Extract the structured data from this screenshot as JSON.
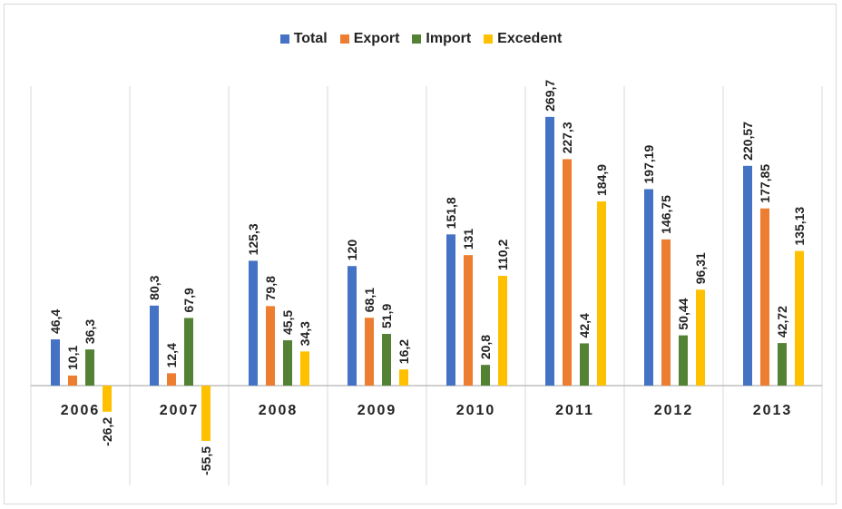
{
  "chart_data": {
    "type": "bar",
    "categories": [
      "2006",
      "2007",
      "2008",
      "2009",
      "2010",
      "2011",
      "2012",
      "2013"
    ],
    "series": [
      {
        "name": "Total",
        "color": "#4472c4",
        "values": [
          46.4,
          80.3,
          125.3,
          120,
          151.8,
          269.7,
          197.19,
          220.57
        ],
        "labels": [
          "46,4",
          "80,3",
          "125,3",
          "120",
          "151,8",
          "269,7",
          "197,19",
          "220,57"
        ]
      },
      {
        "name": "Export",
        "color": "#ed7d31",
        "values": [
          10.1,
          12.4,
          79.8,
          68.1,
          131,
          227.3,
          146.75,
          177.85
        ],
        "labels": [
          "10,1",
          "12,4",
          "79,8",
          "68,1",
          "131",
          "227,3",
          "146,75",
          "177,85"
        ]
      },
      {
        "name": "Import",
        "color": "#548235",
        "values": [
          36.3,
          67.9,
          45.5,
          51.9,
          20.8,
          42.4,
          50.44,
          42.72
        ],
        "labels": [
          "36,3",
          "67,9",
          "45,5",
          "51,9",
          "20,8",
          "42,4",
          "50,44",
          "42,72"
        ]
      },
      {
        "name": "Excedent",
        "color": "#ffc000",
        "values": [
          -26.2,
          -55.5,
          34.3,
          16.2,
          110.2,
          184.9,
          96.31,
          135.13
        ],
        "labels": [
          "-26,2",
          "-55,5",
          "34,3",
          "16,2",
          "110,2",
          "184,9",
          "96,31",
          "135,13"
        ]
      }
    ],
    "ylim": [
      -100,
      300
    ],
    "grid": "vertical category separators",
    "legend_position": "top"
  }
}
